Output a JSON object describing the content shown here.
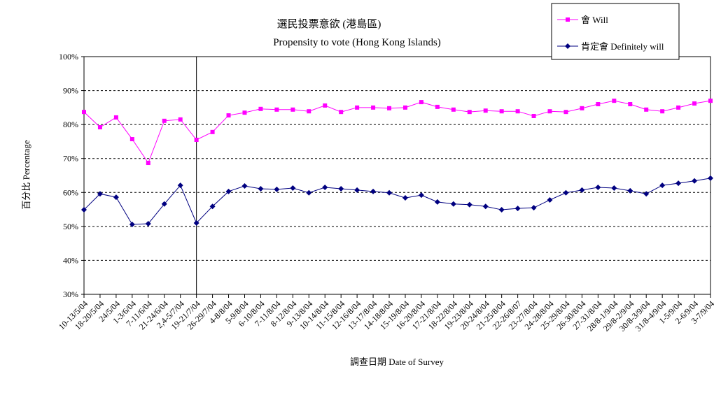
{
  "chart_data": {
    "type": "line",
    "title": "選民投票意欲 (港島區)",
    "subtitle": "Propensity to vote (Hong Kong Islands)",
    "xlabel": "調查日期 Date of Survey",
    "ylabel": "百分比 Percentage",
    "ylim": [
      30,
      100
    ],
    "yticks": [
      "30%",
      "40%",
      "50%",
      "60%",
      "70%",
      "80%",
      "90%",
      "100%"
    ],
    "grid": "horizontal dashed",
    "legend": "top-right",
    "categories": [
      "10-13/5/04",
      "18-20/5/04",
      "24/5/04",
      "1-3/6/04",
      "7-11/6/04",
      "21-24/6/04",
      "2,4-5/7/04",
      "19-21/7/04",
      "26-29/7/04",
      "4-8/8/04",
      "5-9/8/04",
      "6-10/8/04",
      "7-11/8/04",
      "8-12/8/04",
      "9-13/8/04",
      "10-14/8/04",
      "11-15/8/04",
      "12-16/8/04",
      "13-17/8/04",
      "14-18/8/04",
      "15-19/8/04",
      "16-20/8/04",
      "17-21/8/04",
      "18-22/8/04",
      "19-23/8/04",
      "20-24/8/04",
      "21-25/8/04",
      "22-26/8/07",
      "23-27/8/04",
      "24-28/8/04",
      "25-29/8/04",
      "26-30/8/04",
      "27-31/8/04",
      "28/8-1/9/04",
      "29/8-2/9/04",
      "30/8-3/9/04",
      "31/8-4/9/04",
      "1-5/9/04",
      "2-6/9/04",
      "3-7/9/04"
    ],
    "marker_line_after": "19-21/7/04",
    "series": [
      {
        "name": "會 Will",
        "color": "#ff00ff",
        "marker": "square",
        "values": [
          83.7,
          79.2,
          82.1,
          75.7,
          68.7,
          81.1,
          81.5,
          75.5,
          77.8,
          82.7,
          83.5,
          84.6,
          84.4,
          84.4,
          83.9,
          85.6,
          83.7,
          85.0,
          85.0,
          84.8,
          85.0,
          86.6,
          85.2,
          84.4,
          83.7,
          84.1,
          83.9,
          83.9,
          82.5,
          83.9,
          83.7,
          84.8,
          86.0,
          87.0,
          86.0,
          84.4,
          83.9,
          85.0,
          86.2,
          87.0
        ]
      },
      {
        "name": "肯定會 Definitely will",
        "color": "#000080",
        "marker": "diamond",
        "values": [
          54.9,
          59.6,
          58.6,
          50.6,
          50.8,
          56.6,
          62.1,
          51.0,
          55.9,
          60.3,
          61.9,
          61.1,
          60.9,
          61.3,
          59.9,
          61.5,
          61.1,
          60.7,
          60.3,
          59.9,
          58.4,
          59.2,
          57.2,
          56.6,
          56.4,
          55.9,
          54.9,
          55.3,
          55.5,
          57.8,
          59.9,
          60.7,
          61.5,
          61.3,
          60.5,
          59.6,
          62.1,
          62.7,
          63.4,
          64.2
        ]
      }
    ]
  }
}
